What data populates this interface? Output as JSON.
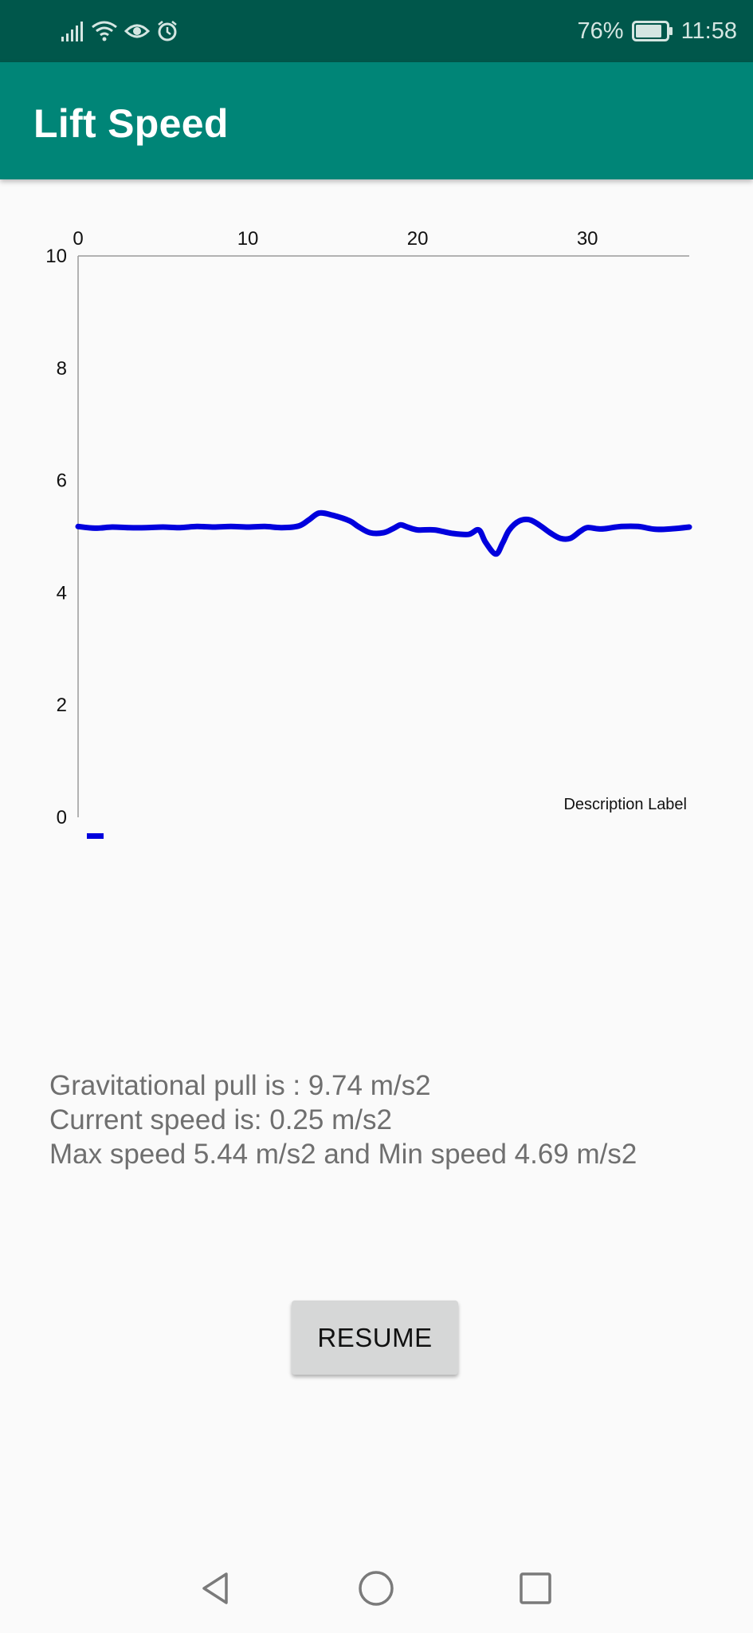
{
  "status_bar": {
    "battery": "76%",
    "time": "11:58",
    "icons": [
      "signal-icon",
      "wifi-icon",
      "eye-icon",
      "alarm-icon",
      "battery-icon"
    ]
  },
  "app_bar": {
    "title": "Lift Speed"
  },
  "chart_data": {
    "type": "line",
    "title": "",
    "xlabel": "",
    "ylabel": "",
    "x_ticks": [
      "0",
      "10",
      "20",
      "30"
    ],
    "y_ticks": [
      "0",
      "2",
      "4",
      "6",
      "8",
      "10"
    ],
    "xlim": [
      0,
      36
    ],
    "ylim": [
      0,
      10
    ],
    "description_label": "Description Label",
    "line_color": "#0000dd",
    "series": [
      {
        "name": "",
        "x": [
          0,
          1,
          2,
          3,
          4,
          5,
          6,
          7,
          8,
          9,
          10,
          11,
          12,
          13,
          13.6,
          14.2,
          15,
          16,
          16.5,
          17.2,
          18,
          18.6,
          19,
          19.4,
          20,
          21,
          22,
          23,
          23.6,
          24,
          24.6,
          25,
          25.4,
          26,
          26.6,
          27.2,
          27.8,
          28.4,
          29,
          29.6,
          30,
          30.6,
          31,
          32,
          33,
          34,
          35,
          36
        ],
        "y": [
          5.18,
          5.15,
          5.17,
          5.16,
          5.16,
          5.17,
          5.16,
          5.18,
          5.17,
          5.18,
          5.17,
          5.18,
          5.16,
          5.19,
          5.3,
          5.42,
          5.38,
          5.28,
          5.18,
          5.07,
          5.07,
          5.15,
          5.21,
          5.17,
          5.12,
          5.12,
          5.06,
          5.04,
          5.12,
          4.9,
          4.69,
          4.88,
          5.12,
          5.28,
          5.3,
          5.2,
          5.07,
          4.97,
          4.97,
          5.1,
          5.16,
          5.14,
          5.14,
          5.18,
          5.18,
          5.13,
          5.14,
          5.17
        ]
      }
    ],
    "grid": false,
    "legend": "bottom-left"
  },
  "info": {
    "gravity": "Gravitational pull is :  9.74 m/s2",
    "current": "Current speed is: 0.25 m/s2",
    "minmax": "Max speed 5.44 m/s2 and Min speed 4.69 m/s2"
  },
  "resume_label": "RESUME",
  "nav_icons": [
    "back-icon",
    "home-icon",
    "recents-icon"
  ]
}
